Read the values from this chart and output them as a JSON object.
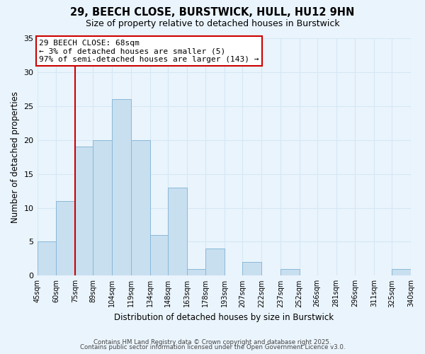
{
  "title": "29, BEECH CLOSE, BURSTWICK, HULL, HU12 9HN",
  "subtitle": "Size of property relative to detached houses in Burstwick",
  "xlabel": "Distribution of detached houses by size in Burstwick",
  "ylabel": "Number of detached properties",
  "bins": [
    45,
    60,
    75,
    89,
    104,
    119,
    134,
    148,
    163,
    178,
    193,
    207,
    222,
    237,
    252,
    266,
    281,
    296,
    311,
    325,
    340
  ],
  "counts": [
    5,
    11,
    19,
    20,
    26,
    20,
    6,
    13,
    1,
    4,
    0,
    2,
    0,
    1,
    0,
    0,
    0,
    0,
    0,
    1
  ],
  "bar_color": "#c8dff0",
  "bar_edge_color": "#8ab8d8",
  "tick_labels": [
    "45sqm",
    "60sqm",
    "75sqm",
    "89sqm",
    "104sqm",
    "119sqm",
    "134sqm",
    "148sqm",
    "163sqm",
    "178sqm",
    "193sqm",
    "207sqm",
    "222sqm",
    "237sqm",
    "252sqm",
    "266sqm",
    "281sqm",
    "296sqm",
    "311sqm",
    "325sqm",
    "340sqm"
  ],
  "ylim": [
    0,
    35
  ],
  "yticks": [
    0,
    5,
    10,
    15,
    20,
    25,
    30,
    35
  ],
  "property_line_x": 75,
  "annotation_title": "29 BEECH CLOSE: 68sqm",
  "annotation_line1": "← 3% of detached houses are smaller (5)",
  "annotation_line2": "97% of semi-detached houses are larger (143) →",
  "annotation_box_color": "#ffffff",
  "annotation_box_edge": "#cc0000",
  "property_line_color": "#cc0000",
  "grid_color": "#d4e8f5",
  "background_color": "#eaf4fc",
  "footer_line1": "Contains HM Land Registry data © Crown copyright and database right 2025.",
  "footer_line2": "Contains public sector information licensed under the Open Government Licence v3.0."
}
